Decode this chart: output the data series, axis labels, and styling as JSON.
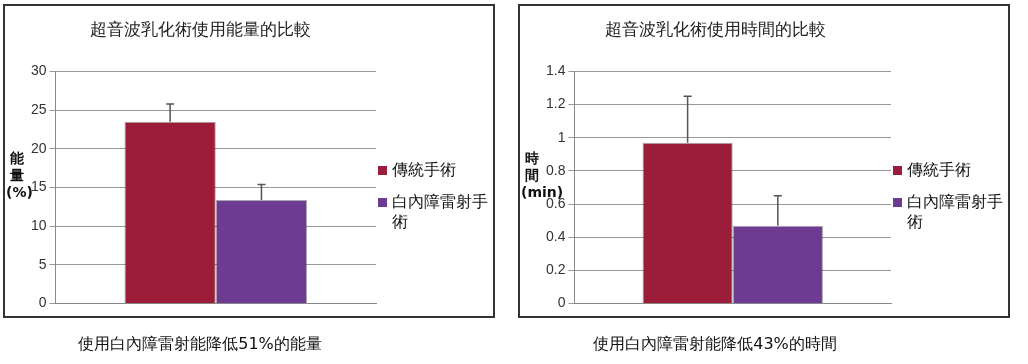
{
  "chart_data": [
    {
      "type": "bar",
      "title": "超音波乳化術使用能量的比較",
      "ylabel": "能量(%)",
      "categories": [
        null
      ],
      "series": [
        {
          "name": "傳統手術",
          "color": "#9b1d3a",
          "values": [
            23.5
          ],
          "errors": [
            [
              23.5,
              25.8
            ]
          ]
        },
        {
          "name": "白內障雷射手術",
          "color": "#6e3b93",
          "values": [
            13.4
          ],
          "errors": [
            [
              13.4,
              15.4
            ]
          ]
        }
      ],
      "ylim": [
        0,
        30
      ],
      "yticks": [
        0,
        5,
        10,
        15,
        20,
        25,
        30
      ],
      "grid": "y",
      "legend": "right",
      "annotations": [
        "使用白內障雷射能降低51%的能量"
      ]
    },
    {
      "type": "bar",
      "title": "超音波乳化術使用時間的比較",
      "ylabel": "時間(min)",
      "categories": [
        null
      ],
      "series": [
        {
          "name": "傳統手術",
          "color": "#9b1d3a",
          "values": [
            0.97
          ],
          "errors": [
            [
              0.97,
              1.25
            ]
          ]
        },
        {
          "name": "白內障雷射手術",
          "color": "#6e3b93",
          "values": [
            0.47
          ],
          "errors": [
            [
              0.47,
              0.65
            ]
          ]
        }
      ],
      "ylim": [
        0,
        1.4
      ],
      "yticks": [
        0,
        0.2,
        0.4,
        0.6,
        0.8,
        1,
        1.2,
        1.4
      ],
      "grid": "y",
      "legend": "right",
      "annotations": [
        "使用白內障雷射能降低43%的時間"
      ]
    }
  ]
}
